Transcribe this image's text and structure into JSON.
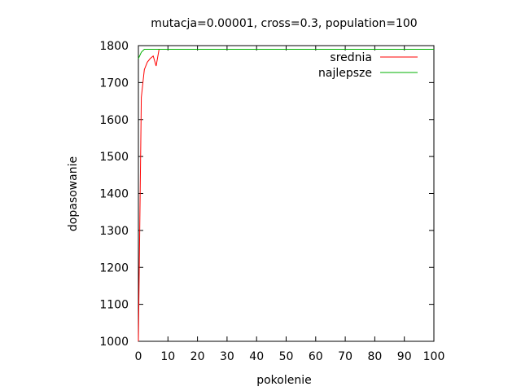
{
  "chart_data": {
    "type": "line",
    "title": "mutacja=0.00001, cross=0.3, population=100",
    "xlabel": "pokolenie",
    "ylabel": "dopasowanie",
    "xlim": [
      0,
      100
    ],
    "ylim": [
      1000,
      1800
    ],
    "x_ticks": [
      0,
      10,
      20,
      30,
      40,
      50,
      60,
      70,
      80,
      90,
      100
    ],
    "y_ticks": [
      1000,
      1100,
      1200,
      1300,
      1400,
      1500,
      1600,
      1700,
      1800
    ],
    "grid": false,
    "legend_position": "top-right",
    "series": [
      {
        "name": "srednia",
        "color": "#ff0000",
        "x": [
          0,
          1,
          2,
          3,
          4,
          5,
          6,
          7,
          8,
          9,
          10,
          15,
          20,
          25,
          30,
          35,
          40,
          45,
          50,
          55,
          60,
          65,
          70,
          75,
          80,
          85,
          90,
          95,
          100
        ],
        "y": [
          1000,
          1660,
          1735,
          1755,
          1765,
          1772,
          1745,
          1790,
          1790,
          1790,
          1790,
          1790,
          1790,
          1790,
          1790,
          1790,
          1790,
          1790,
          1790,
          1790,
          1790,
          1790,
          1790,
          1790,
          1790,
          1790,
          1790,
          1790,
          1790
        ]
      },
      {
        "name": "najlepsze",
        "color": "#00b000",
        "x": [
          0,
          1,
          2,
          3,
          4,
          5,
          10,
          20,
          30,
          40,
          50,
          60,
          70,
          80,
          90,
          100
        ],
        "y": [
          1765,
          1782,
          1790,
          1790,
          1790,
          1790,
          1790,
          1790,
          1790,
          1790,
          1790,
          1790,
          1790,
          1790,
          1790,
          1790
        ]
      }
    ]
  }
}
